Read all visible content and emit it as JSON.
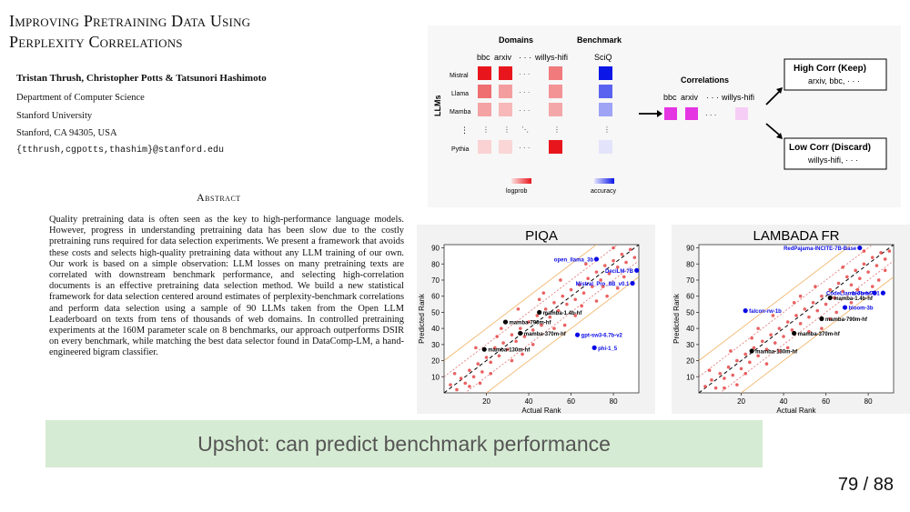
{
  "paper": {
    "title_line1": "Improving Pretraining Data Using",
    "title_line2": "Perplexity Correlations",
    "authors": "Tristan Thrush, Christopher Potts & Tatsunori Hashimoto",
    "affiliation": [
      "Department of Computer Science",
      "Stanford University",
      "Stanford, CA 94305, USA"
    ],
    "email": "{tthrush,cgpotts,thashim}@stanford.edu",
    "abstract_heading": "Abstract",
    "abstract": "Quality pretraining data is often seen as the key to high-performance language models. However, progress in understanding pretraining data has been slow due to the costly pretraining runs required for data selection experiments. We present a framework that avoids these costs and selects high-quality pretraining data without any LLM training of our own. Our work is based on a simple observation: LLM losses on many pretraining texts are correlated with downstream benchmark performance, and selecting high-correlation documents is an effective pretraining data selection method. We build a new statistical framework for data selection centered around estimates of perplexity-benchmark correlations and perform data selection using a sample of 90 LLMs taken from the Open LLM Leaderboard on texts from tens of thousands of web domains. In controlled pretraining experiments at the 160M parameter scale on 8 benchmarks, our approach outperforms DSIR on every benchmark, while matching the best data selector found in DataComp-LM, a hand-engineered bigram classifier."
  },
  "diagram": {
    "domains_label": "Domains",
    "benchmark_label": "Benchmark",
    "columns": [
      "bbc",
      "arxiv",
      "· · ·",
      "willys-hifi",
      "SciQ"
    ],
    "llms_label": "LLMs",
    "rows": [
      "Mistral",
      "Llama",
      "Mamba",
      "⋮",
      "Pythia"
    ],
    "logprob_label": "logprob",
    "accuracy_label": "accuracy",
    "correlations_label": "Correlations",
    "corr_columns": [
      "bbc",
      "arxiv",
      "· · ·",
      "willys-hifi"
    ],
    "high_title": "High Corr (Keep)",
    "high_items": "arxiv, bbc, · · ·",
    "low_title": "Low Corr (Discard)",
    "low_items": "willys-hifi, · · ·",
    "colors": {
      "red": "#e8161c",
      "blue": "#0c16e6",
      "magenta": "#e535e3",
      "banner": "#d6ebd3"
    }
  },
  "chart_data": [
    {
      "type": "scatter",
      "title": "PIQA",
      "xlabel": "Actual Rank",
      "ylabel": "Predicted Rank",
      "xlim": [
        0,
        92
      ],
      "ylim": [
        0,
        92
      ],
      "xticks": [
        20,
        40,
        60,
        80
      ],
      "yticks": [
        10,
        20,
        30,
        40,
        50,
        60,
        70,
        80,
        90
      ],
      "highlighted": [
        {
          "label": "open_llama_3b",
          "x": 72,
          "y": 83,
          "color": "blue"
        },
        {
          "label": "DeciLM-7B",
          "x": 91,
          "y": 76,
          "color": "blue"
        },
        {
          "label": "Mistral_Pro_8B_v0.1",
          "x": 89,
          "y": 68,
          "color": "blue"
        },
        {
          "label": "gpt-sw3-6.7b-v2",
          "x": 63,
          "y": 36,
          "color": "blue"
        },
        {
          "label": "phi-1_5",
          "x": 71,
          "y": 28,
          "color": "blue"
        },
        {
          "label": "mamba-1.4b-hf",
          "x": 45,
          "y": 50,
          "color": "black"
        },
        {
          "label": "mamba-790m-hf",
          "x": 29,
          "y": 44,
          "color": "black"
        },
        {
          "label": "mamba-370m-hf",
          "x": 36,
          "y": 37,
          "color": "black"
        },
        {
          "label": "mamba-130m-hf",
          "x": 19,
          "y": 27,
          "color": "black"
        }
      ],
      "points": [
        [
          3,
          5
        ],
        [
          6,
          2
        ],
        [
          8,
          9
        ],
        [
          10,
          6
        ],
        [
          12,
          14
        ],
        [
          14,
          10
        ],
        [
          16,
          18
        ],
        [
          18,
          13
        ],
        [
          20,
          22
        ],
        [
          22,
          19
        ],
        [
          24,
          28
        ],
        [
          26,
          23
        ],
        [
          28,
          31
        ],
        [
          30,
          27
        ],
        [
          32,
          36
        ],
        [
          34,
          32
        ],
        [
          36,
          40
        ],
        [
          38,
          35
        ],
        [
          40,
          44
        ],
        [
          42,
          39
        ],
        [
          44,
          48
        ],
        [
          46,
          42
        ],
        [
          48,
          52
        ],
        [
          50,
          47
        ],
        [
          52,
          56
        ],
        [
          54,
          51
        ],
        [
          56,
          60
        ],
        [
          58,
          55
        ],
        [
          60,
          64
        ],
        [
          62,
          58
        ],
        [
          64,
          67
        ],
        [
          66,
          62
        ],
        [
          68,
          71
        ],
        [
          70,
          66
        ],
        [
          72,
          75
        ],
        [
          74,
          70
        ],
        [
          76,
          79
        ],
        [
          78,
          74
        ],
        [
          80,
          82
        ],
        [
          82,
          78
        ],
        [
          84,
          86
        ],
        [
          86,
          81
        ],
        [
          88,
          89
        ],
        [
          90,
          84
        ],
        [
          15,
          28
        ],
        [
          25,
          35
        ],
        [
          35,
          52
        ],
        [
          45,
          58
        ],
        [
          55,
          70
        ],
        [
          65,
          54
        ],
        [
          75,
          66
        ],
        [
          85,
          72
        ],
        [
          12,
          4
        ],
        [
          22,
          12
        ],
        [
          32,
          20
        ],
        [
          42,
          30
        ],
        [
          52,
          40
        ],
        [
          62,
          48
        ],
        [
          72,
          57
        ],
        [
          82,
          65
        ],
        [
          27,
          40
        ],
        [
          47,
          62
        ],
        [
          67,
          80
        ],
        [
          80,
          90
        ],
        [
          5,
          12
        ],
        [
          17,
          6
        ],
        [
          37,
          24
        ],
        [
          57,
          42
        ],
        [
          77,
          60
        ]
      ]
    },
    {
      "type": "scatter",
      "title": "LAMBADA FR",
      "xlabel": "Actual Rank",
      "ylabel": "Predicted Rank",
      "xlim": [
        0,
        92
      ],
      "ylim": [
        0,
        92
      ],
      "xticks": [
        20,
        40,
        60,
        80
      ],
      "yticks": [
        10,
        20,
        30,
        40,
        50,
        60,
        70,
        80,
        90
      ],
      "highlighted": [
        {
          "label": "RedPajama-INCITE-7B-Base",
          "x": 76,
          "y": 90,
          "color": "blue"
        },
        {
          "label": "bloom-7b1",
          "x": 87,
          "y": 62,
          "color": "blue"
        },
        {
          "label": "CodeLlama-7b-hf",
          "x": 83,
          "y": 62,
          "color": "blue"
        },
        {
          "label": "falcon-rw-1b",
          "x": 22,
          "y": 51,
          "color": "blue"
        },
        {
          "label": "bloom-3b",
          "x": 69,
          "y": 53,
          "color": "blue"
        },
        {
          "label": "mamba-1.4b-hf",
          "x": 62,
          "y": 59,
          "color": "black"
        },
        {
          "label": "mamba-790m-hf",
          "x": 58,
          "y": 46,
          "color": "black"
        },
        {
          "label": "mamba-370m-hf",
          "x": 45,
          "y": 37,
          "color": "black"
        },
        {
          "label": "mamba-130m-hf",
          "x": 25,
          "y": 26,
          "color": "black"
        }
      ],
      "points": [
        [
          3,
          4
        ],
        [
          6,
          8
        ],
        [
          8,
          3
        ],
        [
          10,
          12
        ],
        [
          12,
          9
        ],
        [
          14,
          16
        ],
        [
          16,
          11
        ],
        [
          18,
          20
        ],
        [
          20,
          15
        ],
        [
          22,
          24
        ],
        [
          24,
          19
        ],
        [
          26,
          28
        ],
        [
          28,
          23
        ],
        [
          30,
          32
        ],
        [
          32,
          27
        ],
        [
          34,
          36
        ],
        [
          36,
          31
        ],
        [
          38,
          40
        ],
        [
          40,
          35
        ],
        [
          42,
          44
        ],
        [
          44,
          39
        ],
        [
          46,
          48
        ],
        [
          48,
          43
        ],
        [
          50,
          52
        ],
        [
          52,
          47
        ],
        [
          54,
          56
        ],
        [
          56,
          51
        ],
        [
          58,
          60
        ],
        [
          60,
          55
        ],
        [
          62,
          64
        ],
        [
          64,
          59
        ],
        [
          66,
          68
        ],
        [
          68,
          63
        ],
        [
          70,
          72
        ],
        [
          72,
          67
        ],
        [
          74,
          76
        ],
        [
          76,
          71
        ],
        [
          78,
          80
        ],
        [
          80,
          75
        ],
        [
          82,
          84
        ],
        [
          84,
          79
        ],
        [
          86,
          87
        ],
        [
          88,
          83
        ],
        [
          90,
          88
        ],
        [
          15,
          26
        ],
        [
          25,
          34
        ],
        [
          35,
          48
        ],
        [
          45,
          56
        ],
        [
          55,
          66
        ],
        [
          65,
          50
        ],
        [
          75,
          64
        ],
        [
          85,
          70
        ],
        [
          12,
          3
        ],
        [
          22,
          12
        ],
        [
          32,
          18
        ],
        [
          42,
          28
        ],
        [
          52,
          38
        ],
        [
          62,
          46
        ],
        [
          72,
          56
        ],
        [
          82,
          66
        ],
        [
          28,
          40
        ],
        [
          48,
          60
        ],
        [
          68,
          78
        ],
        [
          78,
          88
        ],
        [
          5,
          14
        ],
        [
          18,
          5
        ],
        [
          38,
          26
        ],
        [
          58,
          40
        ],
        [
          88,
          76
        ]
      ]
    }
  ],
  "page_number": "79 / 88",
  "banner": "Upshot: can predict benchmark performance"
}
